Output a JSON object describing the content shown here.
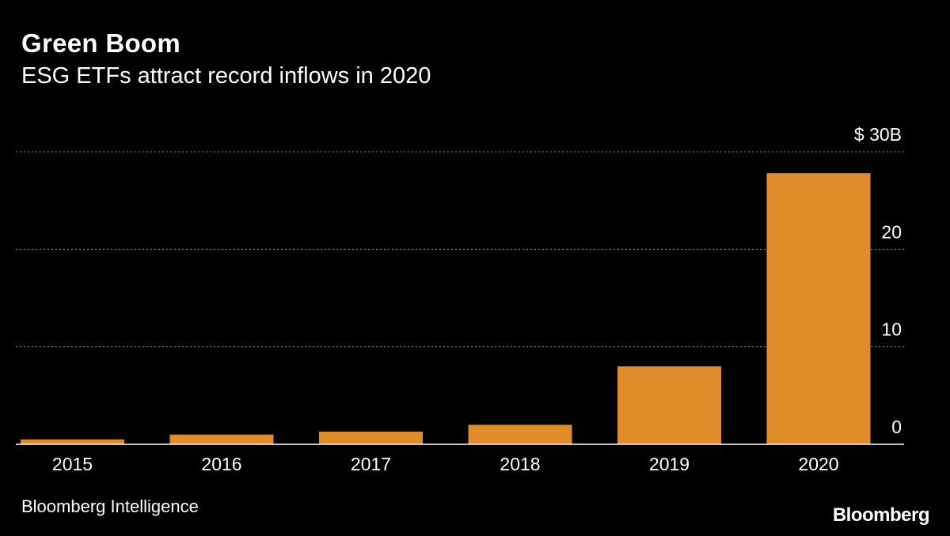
{
  "title": "Green Boom",
  "subtitle": "ESG ETFs attract record inflows in 2020",
  "source": "Bloomberg Intelligence",
  "brand": "Bloomberg",
  "colors": {
    "bar": "#e08c28",
    "background": "#000000",
    "grid": "#8c8c8c",
    "text": "#ffffff"
  },
  "chart_data": {
    "type": "bar",
    "title": "Green Boom",
    "subtitle": "ESG ETFs attract record inflows in 2020",
    "categories": [
      "2015",
      "2016",
      "2017",
      "2018",
      "2019",
      "2020"
    ],
    "values": [
      0.5,
      1.0,
      1.3,
      2.0,
      8.0,
      27.8
    ],
    "ylim": [
      0,
      30
    ],
    "yticks": [
      0,
      10,
      20,
      30
    ],
    "ytick_labels": [
      "0",
      "10",
      "20",
      "$ 30B"
    ],
    "xlabel": "",
    "ylabel": "",
    "grid": true,
    "y_axis_position": "right"
  }
}
